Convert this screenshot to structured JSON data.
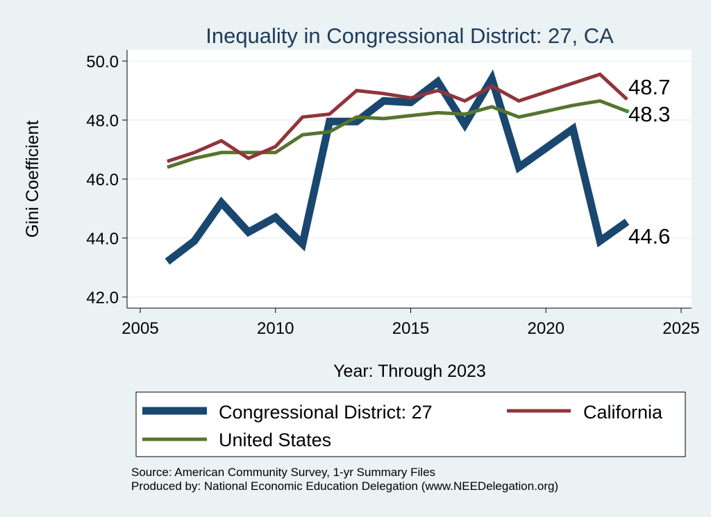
{
  "chart_data": {
    "type": "line",
    "title": "Inequality in Congressional District:  27, CA",
    "xlabel": "Year: Through 2023",
    "ylabel": "Gini Coefficient",
    "xlim": [
      2005,
      2025
    ],
    "ylim": [
      42.0,
      50.0
    ],
    "xticks": [
      "2005",
      "2010",
      "2015",
      "2020",
      "2025"
    ],
    "yticks": [
      "42.0",
      "44.0",
      "46.0",
      "48.0",
      "50.0"
    ],
    "grid": true,
    "legend_position": "bottom",
    "x": [
      2006,
      2007,
      2008,
      2009,
      2010,
      2011,
      2012,
      2013,
      2014,
      2015,
      2016,
      2017,
      2018,
      2019,
      2020,
      2021,
      2022,
      2023
    ],
    "series": [
      {
        "name": "Congressional District:  27",
        "color": "#1a476f",
        "values": [
          43.2,
          43.9,
          45.2,
          44.2,
          44.7,
          43.8,
          47.95,
          47.95,
          48.65,
          48.6,
          49.3,
          47.85,
          49.4,
          46.4,
          47.05,
          47.7,
          43.9,
          44.55
        ],
        "end_label": "44.6"
      },
      {
        "name": "California",
        "color": "#90353b",
        "values": [
          46.6,
          46.9,
          47.3,
          46.7,
          47.1,
          48.1,
          48.2,
          49.0,
          48.9,
          48.75,
          49.0,
          48.65,
          49.15,
          48.65,
          48.95,
          49.25,
          49.55,
          48.7
        ],
        "end_label": "48.7"
      },
      {
        "name": "United States",
        "color": "#55752f",
        "values": [
          46.4,
          46.7,
          46.9,
          46.9,
          46.9,
          47.5,
          47.6,
          48.1,
          48.05,
          48.15,
          48.25,
          48.2,
          48.45,
          48.1,
          48.3,
          48.5,
          48.65,
          48.3
        ],
        "end_label": "48.3"
      }
    ]
  },
  "source_lines": [
    "Source: American Community Survey, 1-yr Summary Files",
    "Produced by: National Economic Education Delegation (www.NEEDelegation.org)"
  ]
}
